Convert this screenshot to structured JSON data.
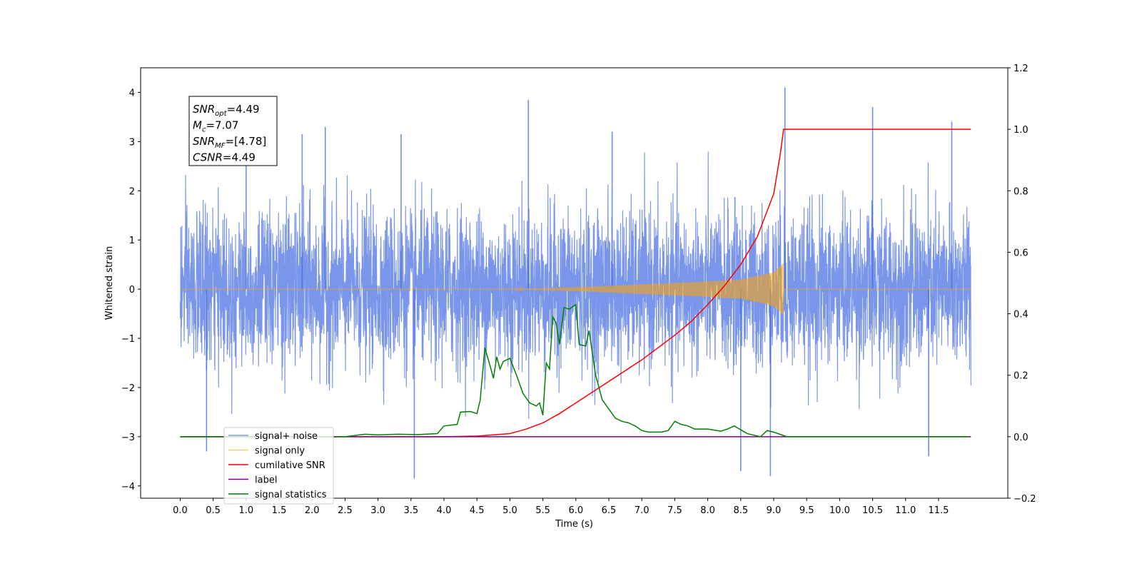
{
  "chart_data": {
    "type": "line",
    "xlabel": "Time (s)",
    "ylabel": "Whitened strain",
    "xlim": [
      -0.6,
      12.55
    ],
    "ylim": [
      -4.25,
      4.5
    ],
    "y2lim": [
      -0.2,
      1.2
    ],
    "xticks": [
      0,
      0.5,
      1,
      1.5,
      2,
      2.5,
      3,
      3.5,
      4,
      4.5,
      5,
      5.5,
      6,
      6.5,
      7,
      7.5,
      8,
      8.5,
      9,
      9.5,
      10,
      10.5,
      11,
      11.5
    ],
    "xtick_labels": [
      "0.0",
      "0.5",
      "1.0",
      "1.5",
      "2.0",
      "2.5",
      "3.0",
      "3.5",
      "4.0",
      "4.5",
      "5.0",
      "5.5",
      "6.0",
      "6.5",
      "7.0",
      "7.5",
      "8.0",
      "8.5",
      "9.0",
      "9.5",
      "10.0",
      "10.5",
      "11.0",
      "11.5"
    ],
    "yticks": [
      -4,
      -3,
      -2,
      -1,
      0,
      1,
      2,
      3,
      4
    ],
    "ytick_labels": [
      "−4",
      "−3",
      "−2",
      "−1",
      "0",
      "1",
      "2",
      "3",
      "4"
    ],
    "y2ticks": [
      -0.2,
      0.0,
      0.2,
      0.4,
      0.6,
      0.8,
      1.0,
      1.2
    ],
    "y2tick_labels": [
      "−0.2",
      "0.0",
      "0.2",
      "0.4",
      "0.6",
      "0.8",
      "1.0",
      "1.2"
    ],
    "grid": false,
    "legend_position": "lower-left",
    "annotation": {
      "lines": [
        {
          "base": "SNR",
          "sub": "opt",
          "value": "=4.49"
        },
        {
          "base": "M",
          "sub": "c",
          "value": "=7.07"
        },
        {
          "base": "SNR",
          "sub": "MF",
          "value": "=[4.78]"
        },
        {
          "base": "CSNR",
          "sub": "",
          "value": "=4.49"
        }
      ]
    },
    "series": [
      {
        "name": "signal+ noise",
        "axis": "left",
        "color": "#4169e1",
        "kind": "noise",
        "x_range": [
          0,
          11.99
        ],
        "typical_amplitude": 1.5,
        "peaks": [
          [
            0.4,
            -3.3
          ],
          [
            1.0,
            3.3
          ],
          [
            1.85,
            3.15
          ],
          [
            2.2,
            3.3
          ],
          [
            3.35,
            3.15
          ],
          [
            3.55,
            -3.85
          ],
          [
            5.28,
            3.85
          ],
          [
            6.55,
            3.2
          ],
          [
            8.5,
            -3.7
          ],
          [
            8.95,
            -3.8
          ],
          [
            9.17,
            4.1
          ],
          [
            10.5,
            3.7
          ],
          [
            11.35,
            -3.4
          ],
          [
            11.7,
            3.4
          ]
        ]
      },
      {
        "name": "signal only",
        "axis": "left",
        "color": "#ffa500",
        "kind": "chirp",
        "x_range": [
          0,
          11.99
        ],
        "merger_time": 9.15,
        "envelope": [
          [
            0,
            0
          ],
          [
            5.0,
            0
          ],
          [
            6.0,
            0.04
          ],
          [
            7.0,
            0.1
          ],
          [
            8.0,
            0.16
          ],
          [
            8.5,
            0.2
          ],
          [
            9.0,
            0.35
          ],
          [
            9.15,
            0.55
          ]
        ]
      },
      {
        "name": "cumilative SNR",
        "axis": "right",
        "color": "#ff0000",
        "x": [
          0,
          4.0,
          4.5,
          5.0,
          5.25,
          5.5,
          5.75,
          6.0,
          6.5,
          7.0,
          7.5,
          7.75,
          8.0,
          8.25,
          8.5,
          8.75,
          9.0,
          9.1,
          9.15,
          11.99
        ],
        "y": [
          0.0,
          0.0,
          0.002,
          0.01,
          0.025,
          0.045,
          0.075,
          0.11,
          0.18,
          0.25,
          0.33,
          0.375,
          0.43,
          0.49,
          0.56,
          0.65,
          0.79,
          0.92,
          1.0,
          1.0
        ]
      },
      {
        "name": "label",
        "axis": "right",
        "color": "#800080",
        "x": [
          0,
          11.99
        ],
        "y": [
          0.0,
          0.0
        ]
      },
      {
        "name": "signal statistics",
        "axis": "right",
        "color": "#008000",
        "x": [
          0,
          2.5,
          2.8,
          3.0,
          3.3,
          3.6,
          3.9,
          4.0,
          4.2,
          4.25,
          4.4,
          4.5,
          4.55,
          4.62,
          4.7,
          4.75,
          4.8,
          4.85,
          4.9,
          5.0,
          5.1,
          5.2,
          5.3,
          5.4,
          5.45,
          5.5,
          5.55,
          5.6,
          5.65,
          5.7,
          5.75,
          5.82,
          5.9,
          6.0,
          6.05,
          6.15,
          6.2,
          6.3,
          6.4,
          6.5,
          6.6,
          6.7,
          6.8,
          6.9,
          7.0,
          7.1,
          7.3,
          7.4,
          7.5,
          7.6,
          7.7,
          7.8,
          8.0,
          8.2,
          8.3,
          8.4,
          8.6,
          8.8,
          8.9,
          9.0,
          9.2,
          9.3,
          10.0,
          11.0,
          11.95
        ],
        "y": [
          0.0,
          0.0,
          0.008,
          0.006,
          0.008,
          0.007,
          0.01,
          0.035,
          0.04,
          0.08,
          0.082,
          0.075,
          0.12,
          0.29,
          0.23,
          0.19,
          0.26,
          0.22,
          0.245,
          0.255,
          0.2,
          0.14,
          0.11,
          0.1,
          0.11,
          0.07,
          0.24,
          0.22,
          0.39,
          0.37,
          0.3,
          0.42,
          0.415,
          0.43,
          0.3,
          0.295,
          0.345,
          0.2,
          0.12,
          0.09,
          0.06,
          0.05,
          0.045,
          0.035,
          0.02,
          0.015,
          0.015,
          0.02,
          0.05,
          0.04,
          0.035,
          0.025,
          0.025,
          0.018,
          0.025,
          0.035,
          0.01,
          0.0,
          0.02,
          0.015,
          0.0,
          0.0,
          0.0,
          0.0,
          0.0
        ]
      }
    ]
  }
}
